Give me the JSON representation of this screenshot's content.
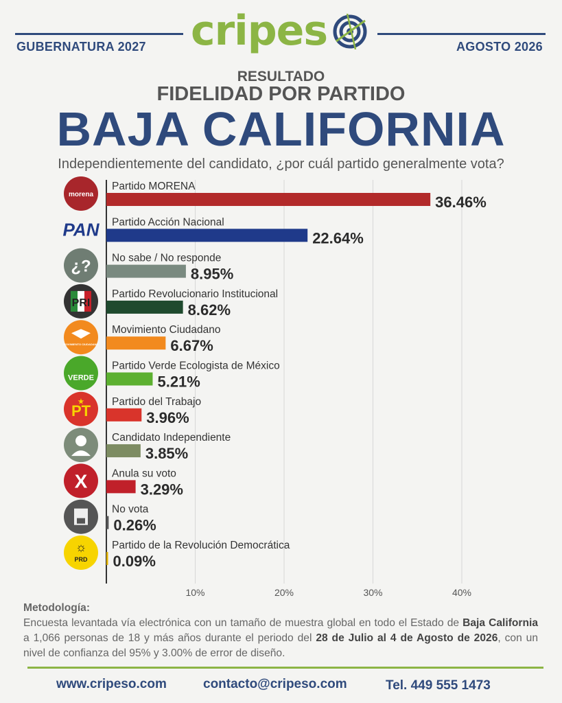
{
  "header": {
    "left_tag": "GUBERNATURA 2027",
    "right_tag": "AGOSTO 2026",
    "logo_text_a": "cripes",
    "logo_text_b": "o"
  },
  "titles": {
    "line1": "RESULTADO",
    "line2": "FIDELIDAD POR PARTIDO",
    "line3": "BAJA CALIFORNIA",
    "question": "Independientemente del candidato, ¿por cuál partido generalmente vota?"
  },
  "chart_data": {
    "type": "bar",
    "orientation": "horizontal",
    "categories": [
      "Partido MORENA",
      "Partido Acción Nacional",
      "No sabe / No responde",
      "Partido Revolucionario Institucional",
      "Movimiento Ciudadano",
      "Partido Verde Ecologista de México",
      "Partido del Trabajo",
      "Candidato Independiente",
      "Anula su voto",
      "No vota",
      "Partido de la Revolución Democrática"
    ],
    "values": [
      36.46,
      22.64,
      8.95,
      8.62,
      6.67,
      5.21,
      3.96,
      3.85,
      3.29,
      0.26,
      0.09
    ],
    "value_labels": [
      "36.46%",
      "22.64%",
      "8.95%",
      "8.62%",
      "6.67%",
      "5.21%",
      "3.96%",
      "3.85%",
      "3.29%",
      "0.26%",
      "0.09%"
    ],
    "colors": [
      "#b22a2a",
      "#1f3a8a",
      "#7a8a80",
      "#1f4a2e",
      "#f28a1e",
      "#5cb030",
      "#d9342b",
      "#7d8c62",
      "#c0202a",
      "#555555",
      "#e0b000"
    ],
    "icons": [
      "morena-icon",
      "pan-icon",
      "question-icon",
      "pri-icon",
      "movimiento-ciudadano-icon",
      "verde-icon",
      "pt-icon",
      "person-icon",
      "x-icon",
      "ballot-icon",
      "prd-icon"
    ],
    "icon_labels": [
      "morena",
      "PAN",
      "¿?",
      "PRI",
      "MOVIMIENTO CIUDADANO",
      "VERDE",
      "PT",
      "",
      "X",
      "",
      "PRD"
    ],
    "xlim": [
      0,
      40
    ],
    "xticks": [
      10,
      20,
      30,
      40
    ],
    "xtick_labels": [
      "10%",
      "20%",
      "30%",
      "40%"
    ],
    "grid": true
  },
  "methodology": {
    "title": "Metodología:",
    "p1": "Encuesta levantada vía electrónica con un tamaño de muestra global en todo el Estado de",
    "bold1": "Baja California",
    "p2": " a 1,066 personas de 18 y más años durante el periodo del ",
    "bold2": "28 de Julio al 4 de Agosto de 2026",
    "p3": ", con un nivel de confianza del 95% y 3.00% de error de diseño."
  },
  "contact": {
    "web": "www.cripeso.com",
    "email": "contacto@cripeso.com",
    "phone": "Tel. 449 555 1473"
  }
}
